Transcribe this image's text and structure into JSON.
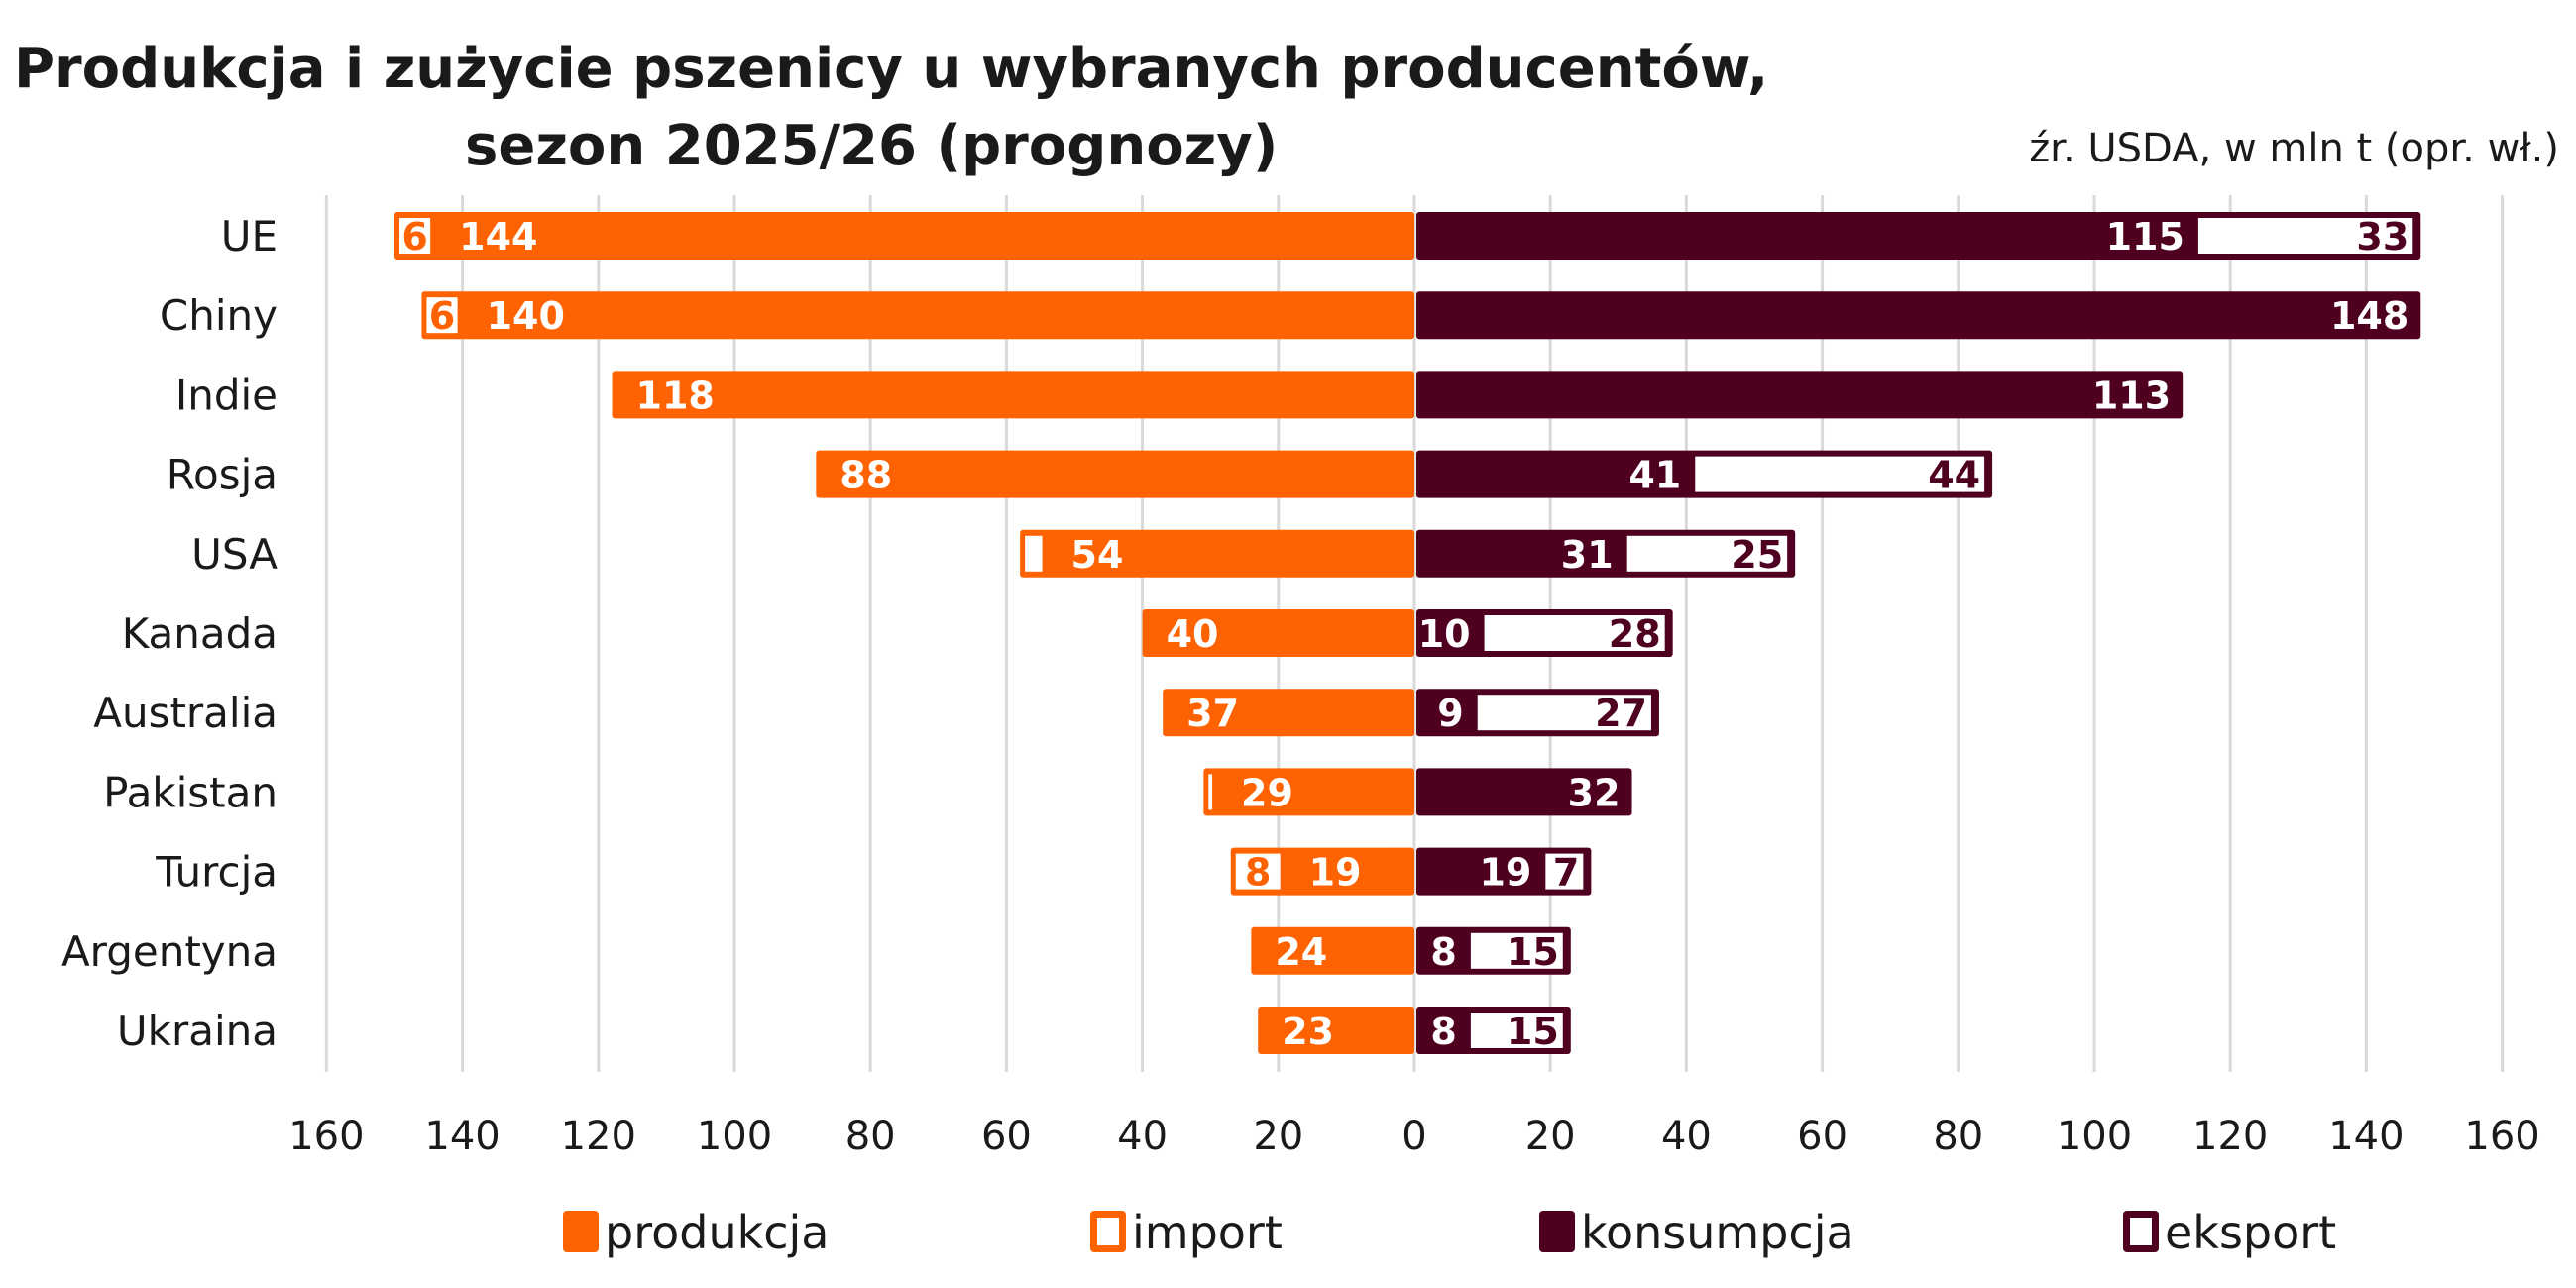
{
  "chart_data": {
    "type": "bar",
    "orientation": "horizontal-diverging-stacked",
    "title_line1": "Produkcja i zużycie pszenicy u wybranych producentów,",
    "title_line2": "sezon 2025/26 (prognozy)",
    "source": "źr. USDA, w mln t (opr. wł.)",
    "xlim": [
      -160,
      160
    ],
    "x_ticks": [
      -160,
      -140,
      -120,
      -100,
      -80,
      -60,
      -40,
      -20,
      0,
      20,
      40,
      60,
      80,
      100,
      120,
      140,
      160
    ],
    "x_tick_labels": [
      "160",
      "140",
      "120",
      "100",
      "80",
      "60",
      "40",
      "20",
      "0",
      "20",
      "40",
      "60",
      "80",
      "100",
      "120",
      "140",
      "160"
    ],
    "grid": true,
    "legend_position": "bottom",
    "categories": [
      "UE",
      "Chiny",
      "Indie",
      "Rosja",
      "USA",
      "Kanada",
      "Australia",
      "Pakistan",
      "Turcja",
      "Argentyna",
      "Ukraina"
    ],
    "series": [
      {
        "name": "produkcja",
        "side": "left",
        "style": "filled",
        "color": "#FF6200",
        "values": [
          144,
          140,
          118,
          88,
          54,
          40,
          37,
          29,
          19,
          24,
          23
        ],
        "labels": [
          "144",
          "140",
          "118",
          "88",
          "54",
          "40",
          "37",
          "29",
          "19",
          "24",
          "23"
        ]
      },
      {
        "name": "import",
        "side": "left",
        "style": "outline",
        "color": "#FF6200",
        "values": [
          6,
          6,
          0,
          0,
          4,
          0,
          0,
          2,
          8,
          0,
          0
        ],
        "labels": [
          "6",
          "6",
          "",
          "",
          "",
          "",
          "",
          "",
          "8",
          "",
          ""
        ]
      },
      {
        "name": "konsumpcja",
        "side": "right",
        "style": "filled",
        "color": "#4F0021",
        "values": [
          115,
          148,
          113,
          41,
          31,
          10,
          9,
          32,
          19,
          8,
          8
        ],
        "labels": [
          "115",
          "148",
          "113",
          "41",
          "31",
          "10",
          "9",
          "32",
          "19",
          "8",
          "8"
        ]
      },
      {
        "name": "eksport",
        "side": "right",
        "style": "outline",
        "color": "#4F0021",
        "values": [
          33,
          0,
          0,
          44,
          25,
          28,
          27,
          0,
          7,
          15,
          15
        ],
        "labels": [
          "33",
          "",
          "",
          "44",
          "25",
          "28",
          "27",
          "",
          "7",
          "15",
          "15"
        ]
      }
    ]
  },
  "legend": [
    {
      "label": "produkcja",
      "style": "filled",
      "color": "#FF6200"
    },
    {
      "label": "import",
      "style": "outline",
      "color": "#FF6200"
    },
    {
      "label": "konsumpcja",
      "style": "filled",
      "color": "#4F0021"
    },
    {
      "label": "eksport",
      "style": "outline",
      "color": "#4F0021"
    }
  ]
}
